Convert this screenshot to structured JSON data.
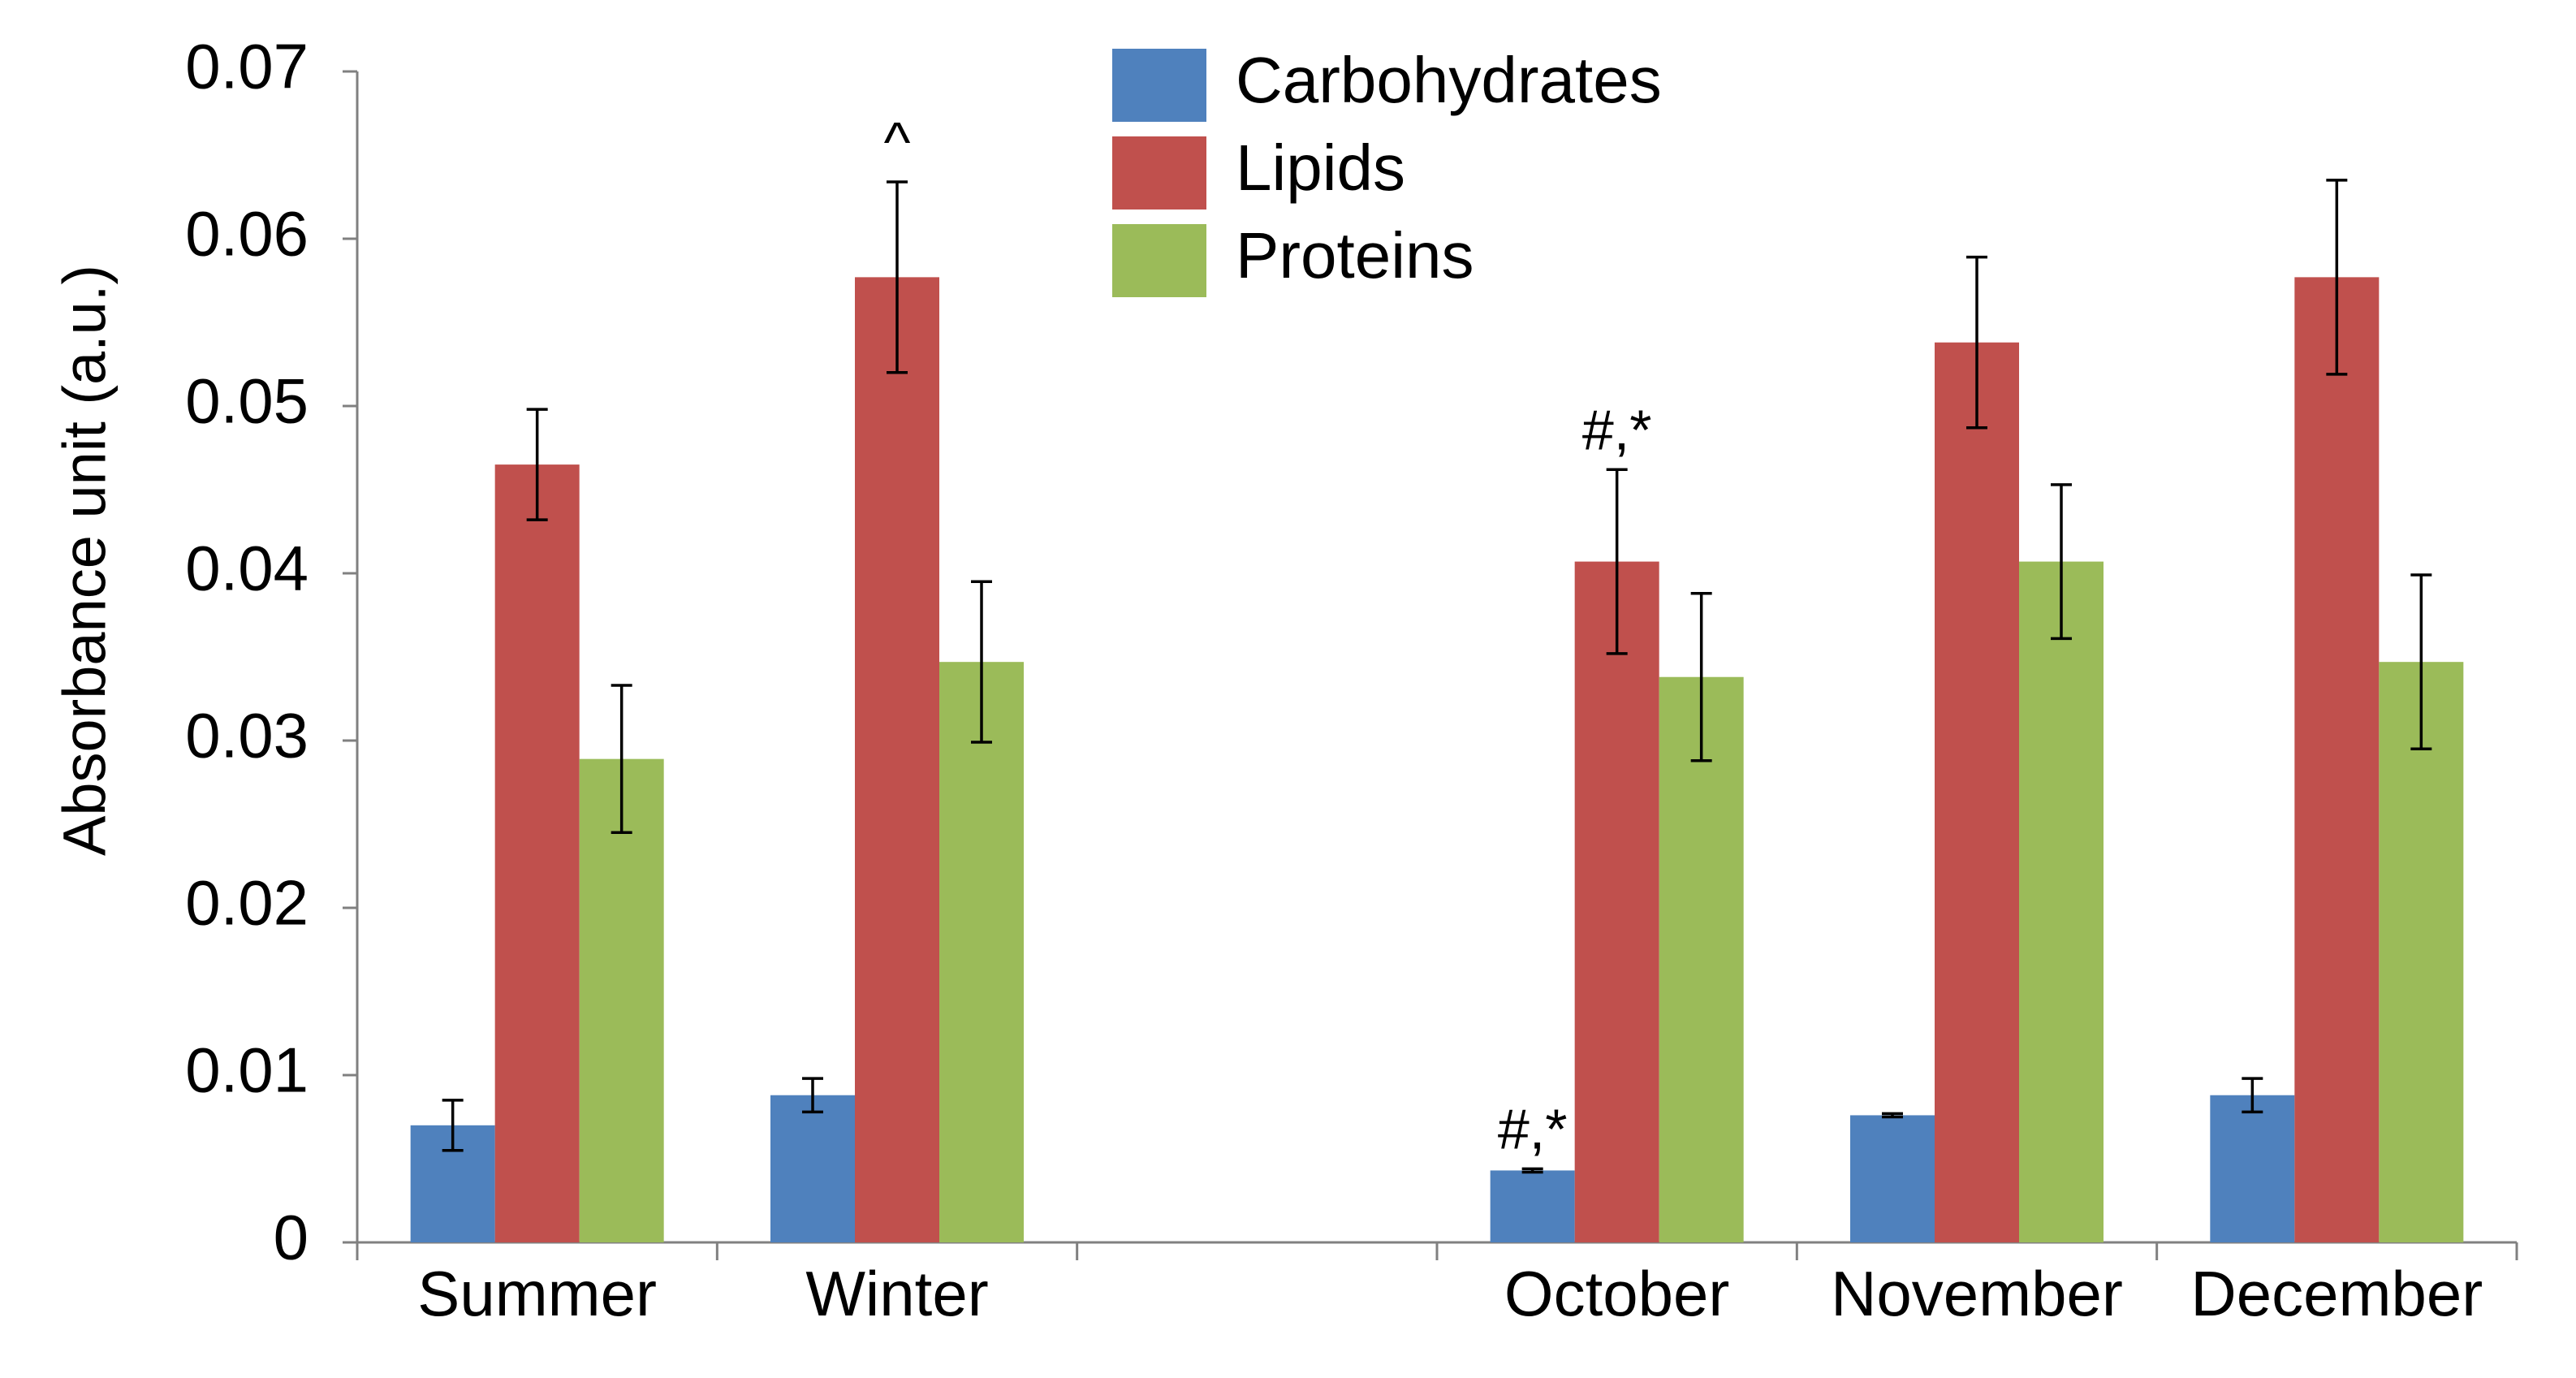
{
  "chart_data": {
    "type": "bar",
    "title": "",
    "xlabel": "",
    "ylabel": "Absorbance unit (a.u.)",
    "ylim": [
      0,
      0.07
    ],
    "yticks": [
      "0",
      "0.01",
      "0.02",
      "0.03",
      "0.04",
      "0.05",
      "0.06",
      "0.07"
    ],
    "categories": [
      "Summer",
      "Winter",
      "",
      "October",
      "November",
      "December"
    ],
    "series": [
      {
        "name": "Carbohydrates",
        "color": "#4f81bd",
        "values": [
          0.007,
          0.0088,
          null,
          0.0043,
          0.0076,
          0.0088
        ],
        "errors": [
          0.0015,
          0.001,
          null,
          0.0001,
          0.0001,
          0.001
        ]
      },
      {
        "name": "Lipids",
        "color": "#c0504d",
        "values": [
          0.0465,
          0.0577,
          null,
          0.0407,
          0.0538,
          0.0577
        ],
        "errors": [
          0.0033,
          0.0057,
          null,
          0.0055,
          0.0051,
          0.0058
        ]
      },
      {
        "name": "Proteins",
        "color": "#9bbb59",
        "values": [
          0.0289,
          0.0347,
          null,
          0.0338,
          0.0407,
          0.0347
        ],
        "errors": [
          0.0044,
          0.0048,
          null,
          0.005,
          0.0046,
          0.0052
        ]
      }
    ],
    "annotations": [
      {
        "text": "^",
        "category": "Winter",
        "series": "Lipids"
      },
      {
        "text": "#,*",
        "category": "October",
        "series": "Lipids"
      },
      {
        "text": "#,*",
        "category": "October",
        "series": "Carbohydrates"
      }
    ],
    "legend": {
      "position": "top-center"
    },
    "grid": false
  }
}
